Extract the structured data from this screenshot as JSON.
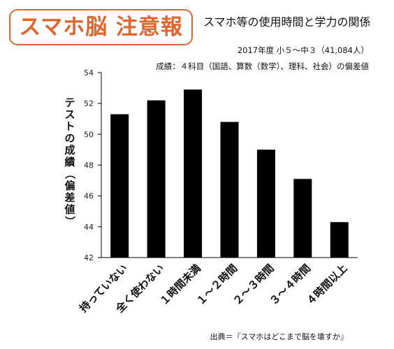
{
  "header": {
    "badge": "スマホ脳 注意報",
    "title": "スマホ等の使用時間と学力の関係",
    "period": "2017年度 小５～中３（41,084人）",
    "subject": "成績：４科目（国語、算数（数学）、理科、社会）の偏差値"
  },
  "source": "出典＝『スマホはどこまで脳を壊すか』",
  "colors": {
    "badge": "#e0662e",
    "bar": "#000000"
  },
  "chart_data": {
    "type": "bar",
    "title": "スマホ等の使用時間と学力の関係",
    "ylabel": "テストの成績（偏差値）",
    "xlabel": "",
    "categories": [
      "持っていない",
      "全く使わない",
      "１時間未満",
      "１～２時間",
      "２～３時間",
      "３～４時間",
      "４時間以上"
    ],
    "values": [
      51.3,
      52.2,
      52.9,
      50.8,
      49.0,
      47.1,
      44.3
    ],
    "ylim": [
      42,
      54
    ],
    "yticks": [
      "42",
      "44",
      "46",
      "48",
      "50",
      "52",
      "54"
    ],
    "grid": false
  }
}
